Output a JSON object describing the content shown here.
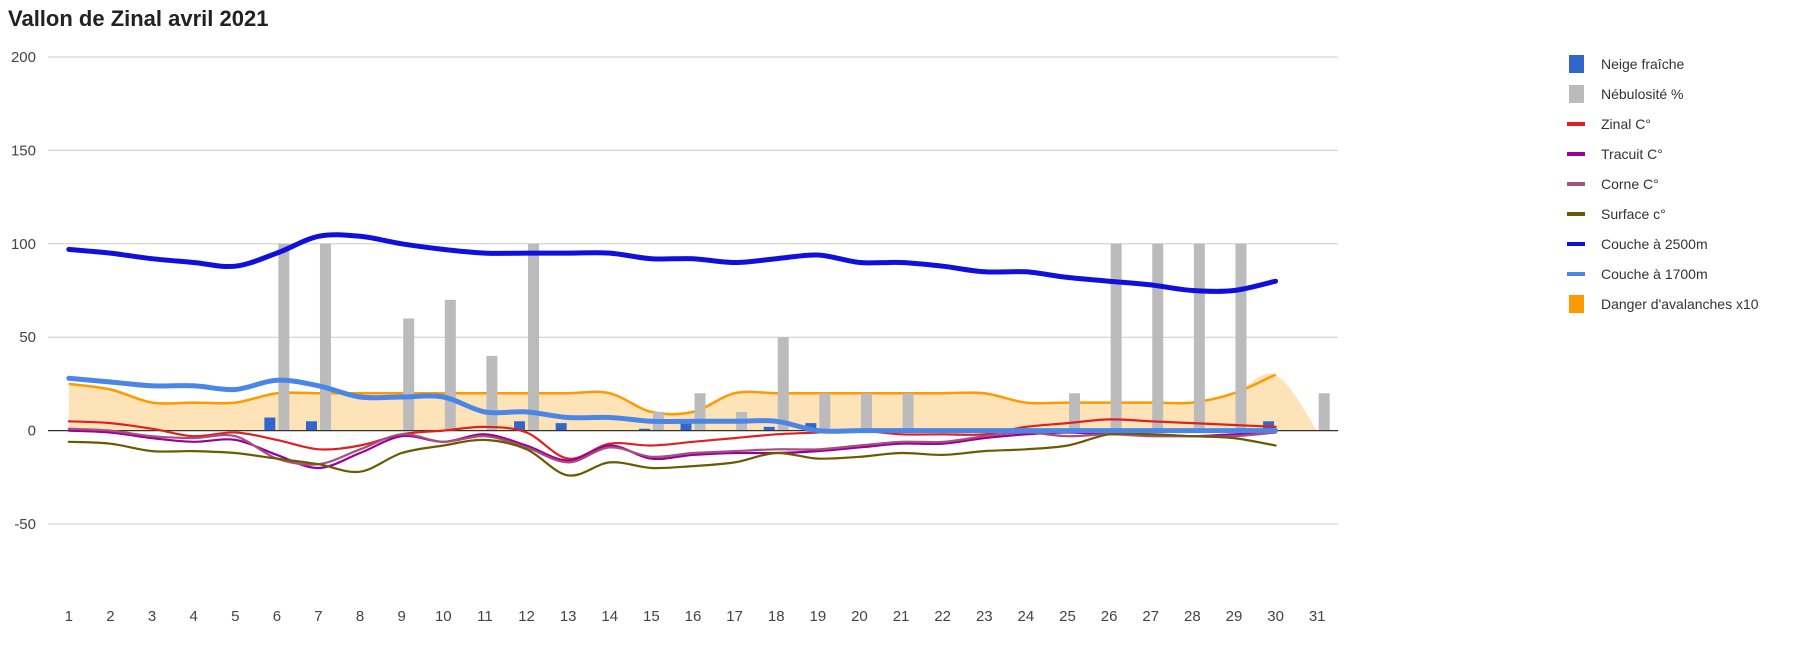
{
  "chart_data": {
    "type": "combo",
    "title": "Vallon de Zinal avril 2021",
    "xlabel": "",
    "ylabel": "",
    "ylim": [
      -50,
      200
    ],
    "yticks": [
      -50,
      0,
      50,
      100,
      150,
      200
    ],
    "categories": [
      "1",
      "2",
      "3",
      "4",
      "5",
      "6",
      "7",
      "8",
      "9",
      "10",
      "11",
      "12",
      "13",
      "14",
      "15",
      "16",
      "17",
      "18",
      "19",
      "20",
      "21",
      "22",
      "23",
      "24",
      "25",
      "26",
      "27",
      "28",
      "29",
      "30",
      "31"
    ],
    "grid": true,
    "legend_position": "right",
    "series": [
      {
        "name": "Neige fraîche",
        "kind": "bar",
        "color": "#3366cc",
        "values": [
          0,
          0,
          0,
          0,
          0,
          7,
          5,
          0,
          0,
          0,
          0,
          5,
          4,
          0,
          1,
          5,
          0,
          2,
          4,
          0,
          0,
          0,
          0,
          0,
          0,
          0,
          0,
          0,
          0,
          5,
          null
        ]
      },
      {
        "name": "Nébulosité %",
        "kind": "bar",
        "color": "#bbbbbb",
        "values": [
          0,
          0,
          0,
          0,
          0,
          100,
          100,
          0,
          60,
          70,
          40,
          100,
          0,
          0,
          10,
          20,
          10,
          50,
          20,
          20,
          20,
          0,
          0,
          0,
          20,
          100,
          100,
          100,
          100,
          0,
          20
        ]
      },
      {
        "name": "Zinal C°",
        "kind": "line",
        "color": "#e02020",
        "values": [
          5,
          4,
          1,
          -3,
          -1,
          -5,
          -10,
          -8,
          -2,
          0,
          2,
          -1,
          -15,
          -7,
          -8,
          -6,
          -4,
          -2,
          -1,
          0,
          -2,
          -2,
          -2,
          2,
          4,
          6,
          5,
          4,
          3,
          2,
          null
        ]
      },
      {
        "name": "Tracuit C°",
        "kind": "line",
        "color": "#990099",
        "values": [
          0,
          -1,
          -4,
          -6,
          -5,
          -13,
          -20,
          -12,
          -3,
          -6,
          -2,
          -8,
          -16,
          -8,
          -15,
          -13,
          -12,
          -12,
          -11,
          -9,
          -7,
          -7,
          -4,
          -2,
          -1,
          -2,
          -2,
          -3,
          -2,
          -1,
          null
        ]
      },
      {
        "name": "Corne C°",
        "kind": "line",
        "color": "#a6507c",
        "values": [
          1,
          0,
          -3,
          -4,
          -3,
          -15,
          -18,
          -10,
          -2,
          -6,
          -3,
          -9,
          -17,
          -9,
          -14,
          -12,
          -11,
          -10,
          -10,
          -8,
          -6,
          -6,
          -3,
          -1,
          -3,
          -2,
          -3,
          -3,
          -3,
          -1,
          null
        ]
      },
      {
        "name": "Surface c°",
        "kind": "line",
        "color": "#6b5a00",
        "values": [
          -6,
          -7,
          -11,
          -11,
          -12,
          -15,
          -18,
          -22,
          -12,
          -8,
          -5,
          -10,
          -24,
          -17,
          -20,
          -19,
          -17,
          -12,
          -15,
          -14,
          -12,
          -13,
          -11,
          -10,
          -8,
          -2,
          -2,
          -3,
          -4,
          -8,
          null
        ]
      },
      {
        "name": "Couche à 2500m",
        "kind": "line",
        "color": "#1010dd",
        "values": [
          97,
          95,
          92,
          90,
          88,
          95,
          104,
          104,
          100,
          97,
          95,
          95,
          95,
          95,
          92,
          92,
          90,
          92,
          94,
          90,
          90,
          88,
          85,
          85,
          82,
          80,
          78,
          75,
          75,
          80,
          null
        ]
      },
      {
        "name": "Couche à 1700m",
        "kind": "line",
        "color": "#4a86e8",
        "values": [
          28,
          26,
          24,
          24,
          22,
          27,
          24,
          18,
          18,
          18,
          10,
          10,
          7,
          7,
          5,
          5,
          5,
          5,
          0,
          0,
          0,
          0,
          0,
          0,
          0,
          0,
          0,
          0,
          0,
          0,
          null
        ]
      },
      {
        "name": "Danger d'avalanches x10",
        "kind": "area",
        "color": "#ff9900",
        "values": [
          25,
          22,
          15,
          15,
          15,
          20,
          20,
          20,
          20,
          20,
          20,
          20,
          20,
          20,
          10,
          10,
          20,
          20,
          20,
          20,
          20,
          20,
          20,
          15,
          15,
          15,
          15,
          15,
          20,
          30,
          0
        ]
      }
    ]
  }
}
